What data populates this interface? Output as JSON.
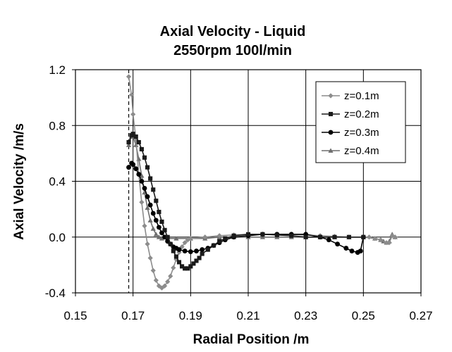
{
  "chart_data": {
    "type": "line",
    "title": "Axial Velocity - Liquid",
    "subtitle": "2550rpm 100l/min",
    "xlabel": "Radial Position /m",
    "ylabel": "Axial Velocity /m/s",
    "xlim": [
      0.15,
      0.27
    ],
    "ylim": [
      -0.4,
      1.2
    ],
    "xticks": [
      "0.15",
      "0.17",
      "0.19",
      "0.21",
      "0.23",
      "0.25",
      "0.27"
    ],
    "xtick_values": [
      0.15,
      0.17,
      0.19,
      0.21,
      0.23,
      0.25,
      0.27
    ],
    "yticks": [
      "-0.4",
      "0.0",
      "0.4",
      "0.8",
      "1.2"
    ],
    "ytick_values": [
      -0.4,
      0.0,
      0.4,
      0.8,
      1.2
    ],
    "grid": "vertical",
    "legend_position": "top-right",
    "reference_line_x": 0.1685,
    "series": [
      {
        "name": "z=0.1m",
        "color": "#8c8c8c",
        "marker": "diamond",
        "points": [
          [
            0.1685,
            1.15
          ],
          [
            0.1695,
            1.02
          ],
          [
            0.17,
            0.88
          ],
          [
            0.171,
            0.7
          ],
          [
            0.172,
            0.45
          ],
          [
            0.173,
            0.25
          ],
          [
            0.174,
            0.08
          ],
          [
            0.175,
            -0.05
          ],
          [
            0.176,
            -0.15
          ],
          [
            0.177,
            -0.24
          ],
          [
            0.178,
            -0.31
          ],
          [
            0.179,
            -0.35
          ],
          [
            0.18,
            -0.365
          ],
          [
            0.181,
            -0.35
          ],
          [
            0.182,
            -0.32
          ],
          [
            0.183,
            -0.28
          ],
          [
            0.184,
            -0.22
          ],
          [
            0.185,
            -0.16
          ],
          [
            0.186,
            -0.11
          ],
          [
            0.187,
            -0.07
          ],
          [
            0.188,
            -0.04
          ],
          [
            0.189,
            -0.02
          ],
          [
            0.19,
            -0.01
          ],
          [
            0.195,
            0.0
          ],
          [
            0.2,
            0.01
          ],
          [
            0.205,
            0.015
          ],
          [
            0.21,
            0.02
          ],
          [
            0.215,
            0.02
          ],
          [
            0.22,
            0.02
          ],
          [
            0.225,
            0.02
          ],
          [
            0.23,
            0.015
          ],
          [
            0.235,
            0.01
          ],
          [
            0.24,
            0.005
          ],
          [
            0.245,
            0.0
          ],
          [
            0.25,
            0.0
          ],
          [
            0.252,
            0.0
          ],
          [
            0.254,
            -0.01
          ],
          [
            0.256,
            -0.02
          ],
          [
            0.258,
            -0.04
          ],
          [
            0.259,
            -0.04
          ],
          [
            0.26,
            0.01
          ],
          [
            0.261,
            0.0
          ]
        ]
      },
      {
        "name": "z=0.2m",
        "color": "#1a1a1a",
        "marker": "square",
        "points": [
          [
            0.1685,
            0.68
          ],
          [
            0.1695,
            0.73
          ],
          [
            0.17,
            0.74
          ],
          [
            0.171,
            0.72
          ],
          [
            0.172,
            0.68
          ],
          [
            0.173,
            0.63
          ],
          [
            0.174,
            0.57
          ],
          [
            0.175,
            0.5
          ],
          [
            0.176,
            0.42
          ],
          [
            0.177,
            0.34
          ],
          [
            0.178,
            0.26
          ],
          [
            0.179,
            0.18
          ],
          [
            0.18,
            0.11
          ],
          [
            0.181,
            0.05
          ],
          [
            0.182,
            0.0
          ],
          [
            0.183,
            -0.05
          ],
          [
            0.184,
            -0.1
          ],
          [
            0.185,
            -0.14
          ],
          [
            0.186,
            -0.18
          ],
          [
            0.187,
            -0.21
          ],
          [
            0.188,
            -0.225
          ],
          [
            0.189,
            -0.225
          ],
          [
            0.19,
            -0.21
          ],
          [
            0.191,
            -0.19
          ],
          [
            0.192,
            -0.17
          ],
          [
            0.193,
            -0.15
          ],
          [
            0.194,
            -0.12
          ],
          [
            0.196,
            -0.09
          ],
          [
            0.198,
            -0.06
          ],
          [
            0.2,
            -0.03
          ],
          [
            0.202,
            -0.01
          ],
          [
            0.205,
            0.01
          ],
          [
            0.21,
            0.02
          ],
          [
            0.215,
            0.02
          ],
          [
            0.22,
            0.015
          ],
          [
            0.225,
            0.01
          ],
          [
            0.23,
            0.0
          ],
          [
            0.235,
            0.0
          ],
          [
            0.24,
            0.0
          ],
          [
            0.245,
            0.0
          ],
          [
            0.25,
            0.0
          ]
        ]
      },
      {
        "name": "z=0.3m",
        "color": "#000000",
        "marker": "circle",
        "points": [
          [
            0.1685,
            0.5
          ],
          [
            0.1695,
            0.53
          ],
          [
            0.17,
            0.52
          ],
          [
            0.171,
            0.49
          ],
          [
            0.172,
            0.45
          ],
          [
            0.173,
            0.4
          ],
          [
            0.174,
            0.35
          ],
          [
            0.175,
            0.29
          ],
          [
            0.176,
            0.23
          ],
          [
            0.177,
            0.17
          ],
          [
            0.178,
            0.12
          ],
          [
            0.179,
            0.07
          ],
          [
            0.18,
            0.03
          ],
          [
            0.181,
            0.0
          ],
          [
            0.182,
            -0.03
          ],
          [
            0.183,
            -0.05
          ],
          [
            0.184,
            -0.07
          ],
          [
            0.185,
            -0.08
          ],
          [
            0.186,
            -0.09
          ],
          [
            0.188,
            -0.1
          ],
          [
            0.19,
            -0.105
          ],
          [
            0.192,
            -0.1
          ],
          [
            0.194,
            -0.09
          ],
          [
            0.196,
            -0.08
          ],
          [
            0.198,
            -0.06
          ],
          [
            0.2,
            -0.04
          ],
          [
            0.202,
            -0.02
          ],
          [
            0.205,
            0.0
          ],
          [
            0.21,
            0.01
          ],
          [
            0.215,
            0.02
          ],
          [
            0.22,
            0.02
          ],
          [
            0.225,
            0.02
          ],
          [
            0.23,
            0.02
          ],
          [
            0.235,
            0.0
          ],
          [
            0.238,
            -0.02
          ],
          [
            0.241,
            -0.05
          ],
          [
            0.244,
            -0.08
          ],
          [
            0.246,
            -0.1
          ],
          [
            0.248,
            -0.11
          ],
          [
            0.249,
            -0.1
          ],
          [
            0.25,
            0.0
          ]
        ]
      },
      {
        "name": "z=0.4m",
        "color": "#6e6e6e",
        "marker": "triangle",
        "points": [
          [
            0.1685,
            0.66
          ],
          [
            0.1695,
            0.72
          ],
          [
            0.17,
            0.72
          ],
          [
            0.171,
            0.66
          ],
          [
            0.172,
            0.56
          ],
          [
            0.173,
            0.44
          ],
          [
            0.174,
            0.32
          ],
          [
            0.175,
            0.21
          ],
          [
            0.176,
            0.12
          ],
          [
            0.177,
            0.06
          ],
          [
            0.178,
            0.02
          ],
          [
            0.179,
            0.0
          ],
          [
            0.18,
            -0.01
          ],
          [
            0.182,
            -0.01
          ],
          [
            0.185,
            -0.01
          ],
          [
            0.19,
            -0.01
          ],
          [
            0.195,
            -0.01
          ],
          [
            0.2,
            0.0
          ],
          [
            0.205,
            0.0
          ],
          [
            0.21,
            0.0
          ],
          [
            0.215,
            0.0
          ],
          [
            0.22,
            0.0
          ],
          [
            0.225,
            0.0
          ],
          [
            0.23,
            0.0
          ],
          [
            0.235,
            0.0
          ],
          [
            0.24,
            0.0
          ],
          [
            0.245,
            0.0
          ],
          [
            0.25,
            0.0
          ],
          [
            0.254,
            -0.01
          ],
          [
            0.256,
            -0.02
          ],
          [
            0.257,
            -0.03
          ],
          [
            0.258,
            -0.04
          ],
          [
            0.259,
            -0.03
          ],
          [
            0.26,
            0.02
          ],
          [
            0.261,
            0.0
          ]
        ]
      }
    ]
  }
}
